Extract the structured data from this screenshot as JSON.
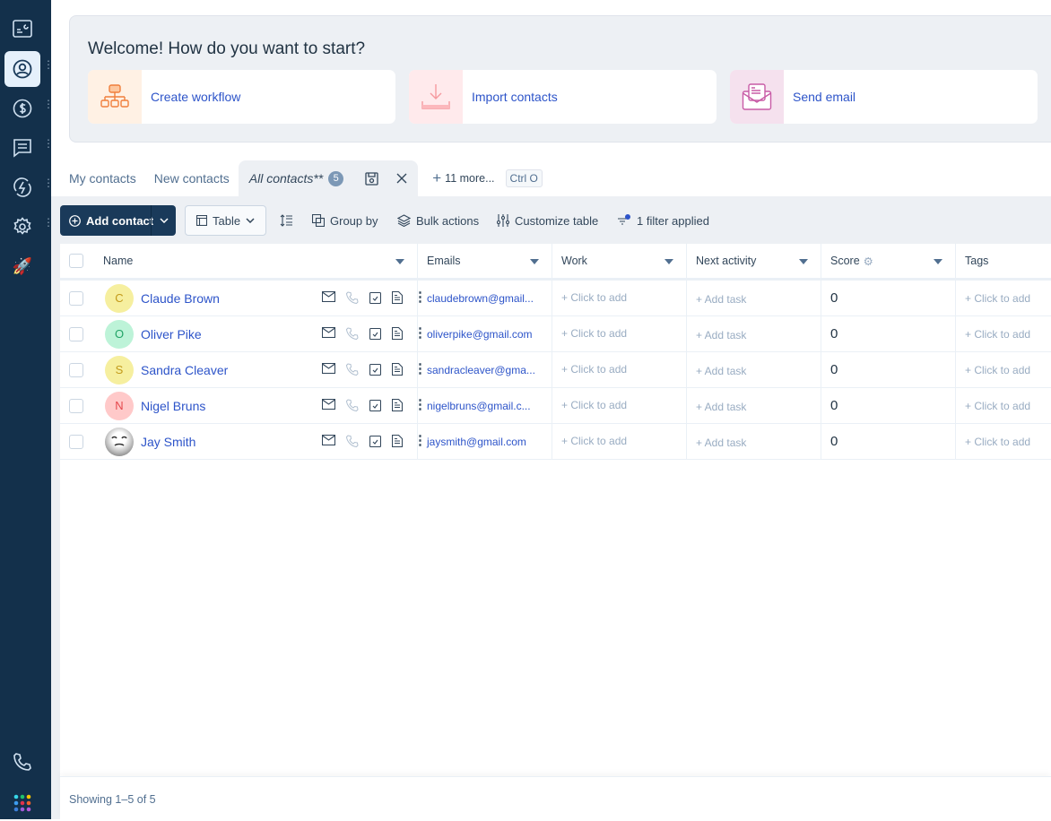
{
  "sidebar": {
    "items": [
      {
        "icon": "dashboard-icon"
      },
      {
        "icon": "contacts-icon",
        "active": true
      },
      {
        "icon": "dollar-icon"
      },
      {
        "icon": "chat-icon"
      },
      {
        "icon": "automation-icon"
      },
      {
        "icon": "gear-icon"
      },
      {
        "icon": "rocket-icon"
      }
    ],
    "bottom": [
      {
        "icon": "phone-icon"
      },
      {
        "icon": "apps-grid-icon"
      }
    ]
  },
  "banner": {
    "title": "Welcome! How do you want to start?",
    "cards": [
      {
        "label": "Create workflow",
        "icon": "workflow-icon",
        "color": "#fff1e4"
      },
      {
        "label": "Import contacts",
        "icon": "import-icon",
        "color": "#ffeaec"
      },
      {
        "label": "Send email",
        "icon": "email-open-icon",
        "color": "#f5e1ee"
      }
    ]
  },
  "tabs": {
    "items": [
      "My contacts",
      "New contacts"
    ],
    "active": "All contacts**",
    "active_count": "5",
    "more": "11 more...",
    "shortcut": "Ctrl O"
  },
  "toolbar": {
    "add_contact": "Add contact",
    "view": "Table",
    "group_by": "Group by",
    "bulk_actions": "Bulk actions",
    "customize": "Customize table",
    "filter": "1 filter applied"
  },
  "table": {
    "columns": [
      "Name",
      "Emails",
      "Work",
      "Next activity",
      "Score",
      "Tags"
    ],
    "rows": [
      {
        "initial": "C",
        "name": "Claude Brown",
        "email": "claudebrown@gmail...",
        "work": "+ Click to add",
        "activity": "+ Add task",
        "score": "0",
        "tags": "+ Click to add",
        "bg": "#f6ef9f",
        "fg": "#c39a1a"
      },
      {
        "initial": "O",
        "name": "Oliver Pike",
        "email": "oliverpike@gmail.com",
        "work": "+ Click to add",
        "activity": "+ Add task",
        "score": "0",
        "tags": "+ Click to add",
        "bg": "#bdf3d8",
        "fg": "#21a366"
      },
      {
        "initial": "S",
        "name": "Sandra Cleaver",
        "email": "sandracleaver@gma...",
        "work": "+ Click to add",
        "activity": "+ Add task",
        "score": "0",
        "tags": "+ Click to add",
        "bg": "#f6ef9f",
        "fg": "#c39a1a"
      },
      {
        "initial": "N",
        "name": "Nigel Bruns",
        "email": "nigelbruns@gmail.c...",
        "work": "+ Click to add",
        "activity": "+ Add task",
        "score": "0",
        "tags": "+ Click to add",
        "bg": "#ffc9c9",
        "fg": "#e5484d"
      },
      {
        "initial": "",
        "name": "Jay Smith",
        "email": "jaysmith@gmail.com",
        "work": "+ Click to add",
        "activity": "+ Add task",
        "score": "0",
        "tags": "+ Click to add",
        "bg": "#d9d9d9",
        "fg": "#333"
      }
    ]
  },
  "footer": {
    "showing": "Showing 1–5 of 5"
  }
}
